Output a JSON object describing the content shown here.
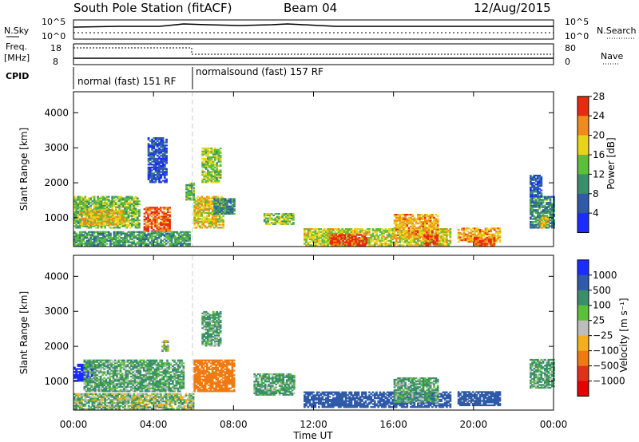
{
  "header": {
    "title": "South Pole Station (fitACF)",
    "beam": "Beam 04",
    "date": "12/Aug/2015"
  },
  "top_panels": {
    "nsky_label": "N.Sky",
    "nsearch_label": "N.Search",
    "freq_label_1": "Freq.",
    "freq_label_2": "[MHz]",
    "nave_label": "Nave",
    "cpid_label": "CPID",
    "noise_ticks_left": [
      "10^5",
      "10^0"
    ],
    "noise_ticks_right": [
      "10^5",
      "10^0"
    ],
    "freq_ticks": [
      "18",
      "8"
    ],
    "nave_ticks": [
      "80",
      "0"
    ],
    "cpid_segments": [
      {
        "label": "normal (fast) 151 RF",
        "start": 0,
        "end": 6
      },
      {
        "label": "normalsound (fast) 157 RF",
        "start": 6,
        "end": 24
      }
    ]
  },
  "chart_data": [
    {
      "type": "heatmap",
      "name": "power",
      "ylabel": "Slant Range [km]",
      "xlabel": "Time UT",
      "xlim": [
        0,
        24
      ],
      "ylim": [
        180,
        4600
      ],
      "yticks": [
        "1000",
        "2000",
        "3000",
        "4000"
      ],
      "xticks": [
        "00:00",
        "04:00",
        "08:00",
        "12:00",
        "16:00",
        "20:00",
        "00:00"
      ],
      "colorbar": {
        "label": "Power [dB]",
        "ticks": [
          "4",
          "8",
          "12",
          "16",
          "20",
          "24",
          "28"
        ],
        "range": [
          0,
          30
        ],
        "colors": [
          "#1a2cff",
          "#2e5aa8",
          "#3a8f6a",
          "#5bbf3a",
          "#e8d21a",
          "#f08a1a",
          "#e82a10"
        ]
      },
      "regions": [
        {
          "t0": 0.0,
          "t1": 3.3,
          "r0": 700,
          "r1": 1600,
          "value": 15
        },
        {
          "t0": 0.3,
          "t1": 2.5,
          "r0": 800,
          "r1": 1200,
          "value": 20
        },
        {
          "t0": 3.5,
          "t1": 4.8,
          "r0": 600,
          "r1": 1300,
          "value": 26
        },
        {
          "t0": 0.0,
          "t1": 5.8,
          "r0": 200,
          "r1": 600,
          "value": 12
        },
        {
          "t0": 6.0,
          "t1": 7.5,
          "r0": 700,
          "r1": 1600,
          "value": 20
        },
        {
          "t0": 7.0,
          "t1": 8.0,
          "r0": 1100,
          "r1": 1550,
          "value": 10
        },
        {
          "t0": 3.7,
          "t1": 4.6,
          "r0": 2000,
          "r1": 3300,
          "value": 5
        },
        {
          "t0": 5.6,
          "t1": 6.0,
          "r0": 1500,
          "r1": 2000,
          "value": 14
        },
        {
          "t0": 6.4,
          "t1": 7.3,
          "r0": 2000,
          "r1": 3000,
          "value": 16
        },
        {
          "t0": 9.5,
          "t1": 11.0,
          "r0": 800,
          "r1": 1100,
          "value": 16
        },
        {
          "t0": 11.5,
          "t1": 18.8,
          "r0": 200,
          "r1": 700,
          "value": 18
        },
        {
          "t0": 12.8,
          "t1": 14.6,
          "r0": 200,
          "r1": 500,
          "value": 28
        },
        {
          "t0": 16.0,
          "t1": 18.2,
          "r0": 400,
          "r1": 1100,
          "value": 22
        },
        {
          "t0": 17.5,
          "t1": 18.2,
          "r0": 200,
          "r1": 500,
          "value": 26
        },
        {
          "t0": 19.2,
          "t1": 21.3,
          "r0": 300,
          "r1": 700,
          "value": 22
        },
        {
          "t0": 20.0,
          "t1": 21.0,
          "r0": 200,
          "r1": 450,
          "value": 27
        },
        {
          "t0": 22.8,
          "t1": 24.0,
          "r0": 700,
          "r1": 1600,
          "value": 10
        },
        {
          "t0": 23.3,
          "t1": 23.7,
          "r0": 700,
          "r1": 1000,
          "value": 20
        },
        {
          "t0": 22.8,
          "t1": 23.4,
          "r0": 1600,
          "r1": 2200,
          "value": 6
        }
      ]
    },
    {
      "type": "heatmap",
      "name": "velocity",
      "ylabel": "Slant Range [km]",
      "xlabel": "Time UT",
      "xlim": [
        0,
        24
      ],
      "ylim": [
        180,
        4600
      ],
      "yticks": [
        "1000",
        "2000",
        "3000",
        "4000"
      ],
      "xticks": [
        "00:00",
        "04:00",
        "08:00",
        "12:00",
        "16:00",
        "20:00",
        "00:00"
      ],
      "colorbar": {
        "label": "Velocity [m s⁻¹]",
        "ticks": [
          "1000",
          "500",
          "100",
          "25",
          "−25",
          "−100",
          "−500",
          "−1000"
        ],
        "colors": [
          "#1a2cff",
          "#2e5aa8",
          "#3a8f6a",
          "#5bbf3a",
          "#bdbdbd",
          "#f3b01a",
          "#f07a10",
          "#e0301a",
          "#e60000"
        ]
      },
      "regions": [
        {
          "t0": 0.0,
          "t1": 1.0,
          "r0": 1000,
          "r1": 1500,
          "value": 1000
        },
        {
          "t0": 0.5,
          "t1": 5.5,
          "r0": 700,
          "r1": 1600,
          "value": 100
        },
        {
          "t0": 0.0,
          "t1": 6.0,
          "r0": 200,
          "r1": 650,
          "value": 25
        },
        {
          "t0": 4.4,
          "t1": 4.7,
          "r0": 1850,
          "r1": 2150,
          "value": 25
        },
        {
          "t0": 6.0,
          "t1": 8.0,
          "r0": 700,
          "r1": 1600,
          "value": -500
        },
        {
          "t0": 6.4,
          "t1": 7.3,
          "r0": 2000,
          "r1": 3000,
          "value": 100
        },
        {
          "t0": 9.0,
          "t1": 11.0,
          "r0": 600,
          "r1": 1200,
          "value": 100
        },
        {
          "t0": 11.5,
          "t1": 18.8,
          "r0": 250,
          "r1": 700,
          "value": 500
        },
        {
          "t0": 16.0,
          "t1": 18.2,
          "r0": 400,
          "r1": 1100,
          "value": 100
        },
        {
          "t0": 19.2,
          "t1": 21.3,
          "r0": 300,
          "r1": 700,
          "value": 500
        },
        {
          "t0": 22.8,
          "t1": 24.0,
          "r0": 800,
          "r1": 1600,
          "value": 100
        }
      ]
    }
  ]
}
